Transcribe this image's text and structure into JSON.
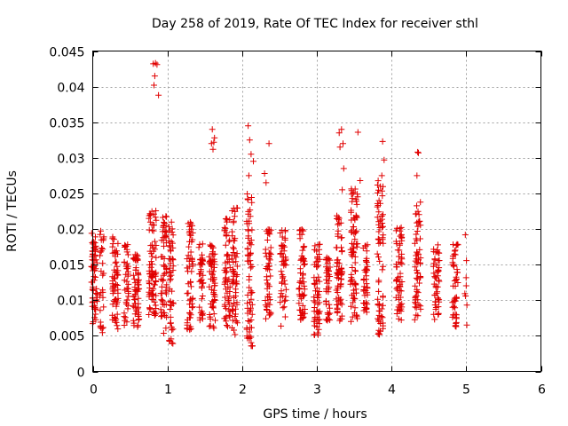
{
  "chart_data": {
    "type": "scatter",
    "title": "Day 258 of 2019, Rate Of TEC Index for receiver sthl",
    "xlabel": "GPS time / hours",
    "ylabel": "ROTI / TECUs",
    "xlim": [
      0,
      6
    ],
    "ylim": [
      0,
      0.045
    ],
    "x_ticks": [
      0,
      1,
      2,
      3,
      4,
      5,
      6
    ],
    "x_tick_labels": [
      "0",
      "1",
      "2",
      "3",
      "4",
      "5",
      "6"
    ],
    "y_ticks": [
      0,
      0.005,
      0.01,
      0.015,
      0.02,
      0.025,
      0.03,
      0.035,
      0.04,
      0.045
    ],
    "y_tick_labels": [
      "0",
      "0.005",
      "0.01",
      "0.015",
      "0.02",
      "0.025",
      "0.03",
      "0.035",
      "0.04",
      "0.045"
    ],
    "grid": true,
    "marker": "+",
    "marker_color": "#e00000",
    "clusters": [
      {
        "x": 0.02,
        "spread": 0.04,
        "ymin": 0.0065,
        "ymax": 0.0195,
        "n": 70
      },
      {
        "x": 0.12,
        "spread": 0.03,
        "ymin": 0.0045,
        "ymax": 0.021,
        "n": 30
      },
      {
        "x": 0.3,
        "spread": 0.04,
        "ymin": 0.0055,
        "ymax": 0.019,
        "n": 60
      },
      {
        "x": 0.45,
        "spread": 0.03,
        "ymin": 0.006,
        "ymax": 0.018,
        "n": 40
      },
      {
        "x": 0.58,
        "spread": 0.04,
        "ymin": 0.006,
        "ymax": 0.017,
        "n": 60
      },
      {
        "x": 0.8,
        "spread": 0.05,
        "ymin": 0.0075,
        "ymax": 0.023,
        "n": 80
      },
      {
        "x": 0.95,
        "spread": 0.04,
        "ymin": 0.005,
        "ymax": 0.022,
        "n": 60
      },
      {
        "x": 1.05,
        "spread": 0.03,
        "ymin": 0.003,
        "ymax": 0.021,
        "n": 50
      },
      {
        "x": 1.3,
        "spread": 0.04,
        "ymin": 0.005,
        "ymax": 0.021,
        "n": 60
      },
      {
        "x": 1.45,
        "spread": 0.03,
        "ymin": 0.007,
        "ymax": 0.018,
        "n": 40
      },
      {
        "x": 1.6,
        "spread": 0.04,
        "ymin": 0.006,
        "ymax": 0.018,
        "n": 60
      },
      {
        "x": 1.8,
        "spread": 0.04,
        "ymin": 0.006,
        "ymax": 0.022,
        "n": 60
      },
      {
        "x": 1.9,
        "spread": 0.04,
        "ymin": 0.005,
        "ymax": 0.023,
        "n": 60
      },
      {
        "x": 2.1,
        "spread": 0.04,
        "ymin": 0.003,
        "ymax": 0.025,
        "n": 70
      },
      {
        "x": 2.35,
        "spread": 0.04,
        "ymin": 0.007,
        "ymax": 0.02,
        "n": 50
      },
      {
        "x": 2.55,
        "spread": 0.04,
        "ymin": 0.006,
        "ymax": 0.02,
        "n": 50
      },
      {
        "x": 2.8,
        "spread": 0.04,
        "ymin": 0.007,
        "ymax": 0.02,
        "n": 60
      },
      {
        "x": 3.0,
        "spread": 0.04,
        "ymin": 0.005,
        "ymax": 0.018,
        "n": 60
      },
      {
        "x": 3.15,
        "spread": 0.03,
        "ymin": 0.007,
        "ymax": 0.016,
        "n": 40
      },
      {
        "x": 3.3,
        "spread": 0.04,
        "ymin": 0.007,
        "ymax": 0.022,
        "n": 70
      },
      {
        "x": 3.5,
        "spread": 0.05,
        "ymin": 0.007,
        "ymax": 0.026,
        "n": 80
      },
      {
        "x": 3.65,
        "spread": 0.03,
        "ymin": 0.008,
        "ymax": 0.018,
        "n": 40
      },
      {
        "x": 3.85,
        "spread": 0.04,
        "ymin": 0.005,
        "ymax": 0.027,
        "n": 70
      },
      {
        "x": 4.1,
        "spread": 0.04,
        "ymin": 0.007,
        "ymax": 0.021,
        "n": 60
      },
      {
        "x": 4.35,
        "spread": 0.04,
        "ymin": 0.007,
        "ymax": 0.024,
        "n": 60
      },
      {
        "x": 4.6,
        "spread": 0.04,
        "ymin": 0.007,
        "ymax": 0.018,
        "n": 50
      },
      {
        "x": 4.85,
        "spread": 0.04,
        "ymin": 0.006,
        "ymax": 0.018,
        "n": 50
      },
      {
        "x": 5.0,
        "spread": 0.02,
        "ymin": 0.0065,
        "ymax": 0.0205,
        "n": 8
      }
    ],
    "outliers": [
      {
        "x": 0.81,
        "y": 0.0432
      },
      {
        "x": 0.84,
        "y": 0.0433
      },
      {
        "x": 0.86,
        "y": 0.0431
      },
      {
        "x": 0.83,
        "y": 0.0415
      },
      {
        "x": 0.82,
        "y": 0.0402
      },
      {
        "x": 0.88,
        "y": 0.0388
      },
      {
        "x": 1.6,
        "y": 0.034
      },
      {
        "x": 1.62,
        "y": 0.0322
      },
      {
        "x": 1.59,
        "y": 0.032
      },
      {
        "x": 1.61,
        "y": 0.0312
      },
      {
        "x": 1.63,
        "y": 0.0328
      },
      {
        "x": 2.08,
        "y": 0.0345
      },
      {
        "x": 2.1,
        "y": 0.0325
      },
      {
        "x": 2.12,
        "y": 0.0305
      },
      {
        "x": 2.15,
        "y": 0.0295
      },
      {
        "x": 2.09,
        "y": 0.0275
      },
      {
        "x": 2.3,
        "y": 0.0278
      },
      {
        "x": 2.32,
        "y": 0.0265
      },
      {
        "x": 2.36,
        "y": 0.032
      },
      {
        "x": 3.3,
        "y": 0.0335
      },
      {
        "x": 3.33,
        "y": 0.034
      },
      {
        "x": 3.35,
        "y": 0.032
      },
      {
        "x": 3.31,
        "y": 0.0315
      },
      {
        "x": 3.36,
        "y": 0.0285
      },
      {
        "x": 3.34,
        "y": 0.0255
      },
      {
        "x": 3.55,
        "y": 0.0336
      },
      {
        "x": 3.58,
        "y": 0.0268
      },
      {
        "x": 3.88,
        "y": 0.0323
      },
      {
        "x": 3.9,
        "y": 0.0297
      },
      {
        "x": 3.87,
        "y": 0.0275
      },
      {
        "x": 4.35,
        "y": 0.0308
      },
      {
        "x": 4.36,
        "y": 0.0307
      },
      {
        "x": 4.34,
        "y": 0.0275
      }
    ]
  }
}
